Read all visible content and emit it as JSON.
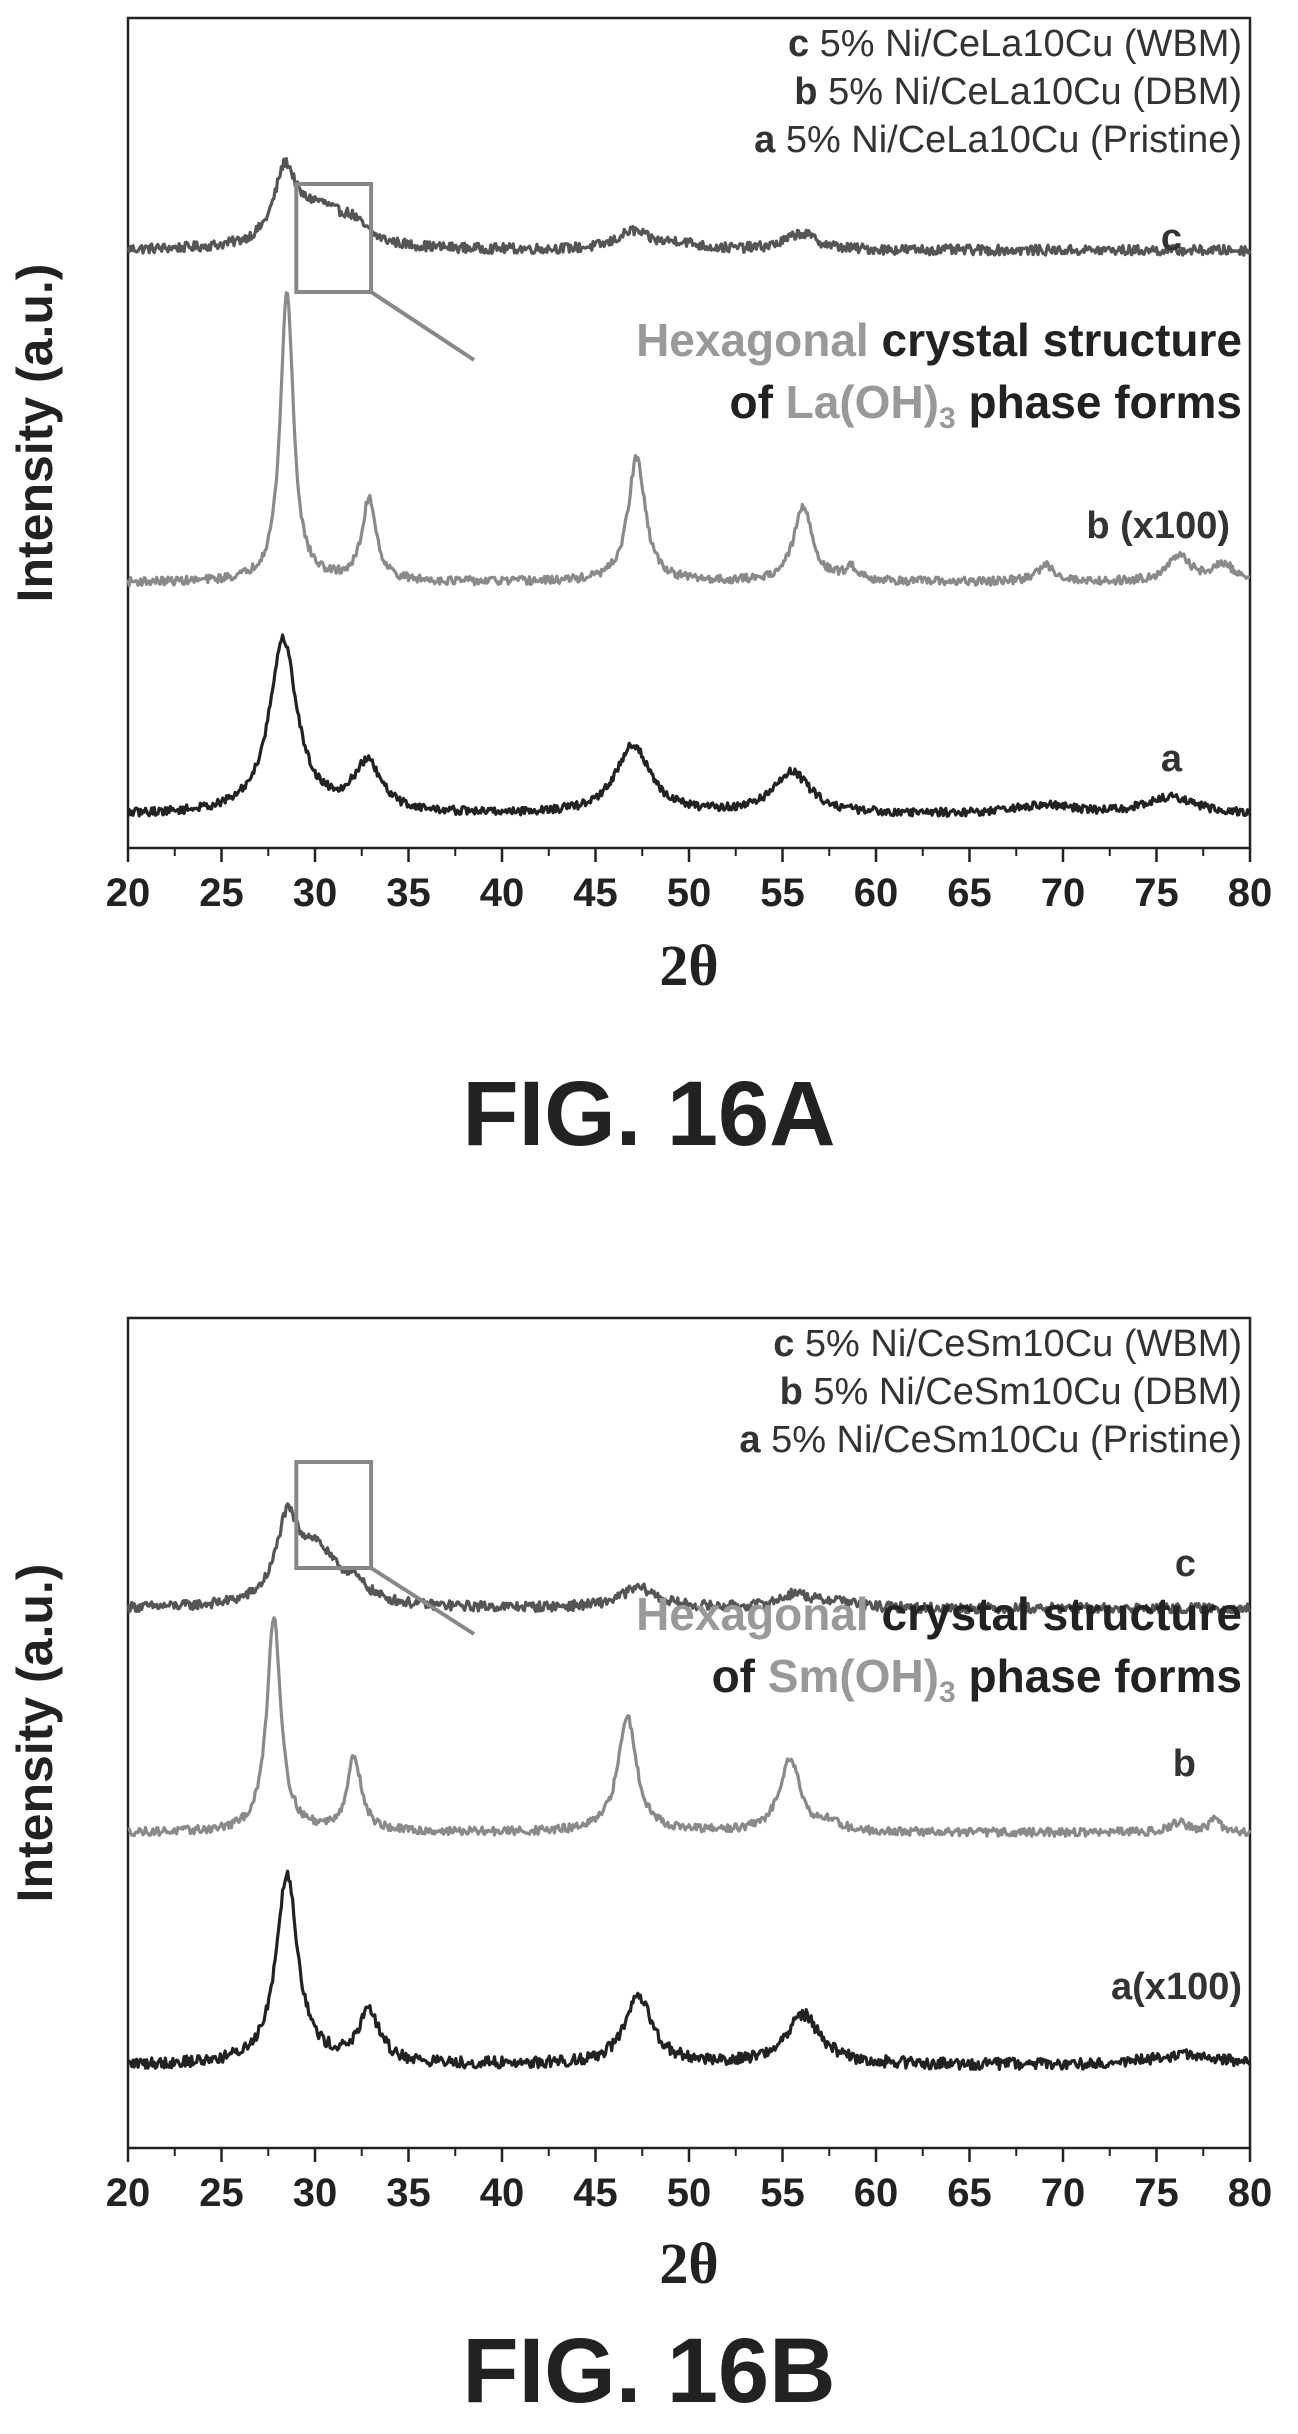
{
  "chart_data": [
    {
      "type": "line",
      "figure_label": "FIG. 16A",
      "xlabel": "2θ",
      "ylabel": "Intensity (a.u.)",
      "xlim": [
        20,
        80
      ],
      "x_ticks": [
        "20",
        "25",
        "30",
        "35",
        "40",
        "45",
        "50",
        "55",
        "60",
        "65",
        "70",
        "75",
        "80"
      ],
      "y_ticks_shown": false,
      "grid": false,
      "legend_position": "top-right",
      "legend": [
        {
          "letter": "c",
          "text": "5% Ni/CeLa10Cu (WBM)"
        },
        {
          "letter": "b",
          "text": "5% Ni/CeLa10Cu (DBM)"
        },
        {
          "letter": "a",
          "text": "5% Ni/CeLa10Cu (Pristine)"
        }
      ],
      "annotation": {
        "highlight": "Hexagonal",
        "rest_line1": " crystal structure",
        "line2_prefix": "of ",
        "line2_species": "La(OH)",
        "line2_subscript": "3",
        "line2_suffix": " phase forms",
        "box_x_range": [
          29,
          33
        ]
      },
      "series": [
        {
          "name": "c",
          "trace_label": "c",
          "color": "#555555",
          "baseline": 0.72,
          "noise": 0.006,
          "peaks": [
            {
              "x": 28.4,
              "height": 0.085,
              "width": 0.7
            },
            {
              "x": 30.2,
              "height": 0.045,
              "width": 1.6
            },
            {
              "x": 32.0,
              "height": 0.02,
              "width": 0.9
            },
            {
              "x": 47.0,
              "height": 0.022,
              "width": 1.0
            },
            {
              "x": 49.5,
              "height": 0.008,
              "width": 1.0
            },
            {
              "x": 56.0,
              "height": 0.02,
              "width": 1.0
            }
          ]
        },
        {
          "name": "b",
          "trace_label": "b (x100)",
          "color": "#8a8a8a",
          "baseline": 0.32,
          "noise": 0.005,
          "peaks": [
            {
              "x": 28.5,
              "height": 0.35,
              "width": 0.42
            },
            {
              "x": 32.9,
              "height": 0.1,
              "width": 0.45
            },
            {
              "x": 47.2,
              "height": 0.15,
              "width": 0.55
            },
            {
              "x": 56.1,
              "height": 0.09,
              "width": 0.6
            },
            {
              "x": 58.7,
              "height": 0.015,
              "width": 0.5
            },
            {
              "x": 69.1,
              "height": 0.02,
              "width": 0.6
            },
            {
              "x": 76.2,
              "height": 0.03,
              "width": 0.8
            },
            {
              "x": 78.6,
              "height": 0.02,
              "width": 0.7
            }
          ]
        },
        {
          "name": "a",
          "trace_label": "a",
          "color": "#222222",
          "baseline": 0.04,
          "noise": 0.005,
          "peaks": [
            {
              "x": 28.3,
              "height": 0.21,
              "width": 0.9
            },
            {
              "x": 32.8,
              "height": 0.058,
              "width": 0.9
            },
            {
              "x": 47.0,
              "height": 0.083,
              "width": 1.1
            },
            {
              "x": 55.5,
              "height": 0.05,
              "width": 1.2
            },
            {
              "x": 69.0,
              "height": 0.01,
              "width": 2.0
            },
            {
              "x": 75.8,
              "height": 0.02,
              "width": 1.6
            }
          ]
        }
      ]
    },
    {
      "type": "line",
      "figure_label": "FIG. 16B",
      "xlabel": "2θ",
      "ylabel": "Intensity (a.u.)",
      "xlim": [
        20,
        80
      ],
      "x_ticks": [
        "20",
        "25",
        "30",
        "35",
        "40",
        "45",
        "50",
        "55",
        "60",
        "65",
        "70",
        "75",
        "80"
      ],
      "y_ticks_shown": false,
      "grid": false,
      "legend_position": "top-right",
      "legend": [
        {
          "letter": "c",
          "text": "5% Ni/CeSm10Cu (WBM)"
        },
        {
          "letter": "b",
          "text": "5% Ni/CeSm10Cu (DBM)"
        },
        {
          "letter": "a",
          "text": "5% Ni/CeSm10Cu (Pristine)"
        }
      ],
      "annotation": {
        "highlight": "Hexagonal",
        "rest_line1": " crystal structure",
        "line2_prefix": "of ",
        "line2_species": "Sm(OH)",
        "line2_subscript": "3",
        "line2_suffix": " phase forms",
        "box_x_range": [
          29,
          33
        ]
      },
      "series": [
        {
          "name": "c",
          "trace_label": "c",
          "color": "#555555",
          "baseline": 0.65,
          "noise": 0.006,
          "peaks": [
            {
              "x": 28.5,
              "height": 0.09,
              "width": 0.7
            },
            {
              "x": 30.0,
              "height": 0.065,
              "width": 1.3
            },
            {
              "x": 32.0,
              "height": 0.02,
              "width": 1.0
            },
            {
              "x": 47.3,
              "height": 0.024,
              "width": 1.2
            },
            {
              "x": 55.7,
              "height": 0.017,
              "width": 1.0
            },
            {
              "x": 58.0,
              "height": 0.008,
              "width": 1.0
            }
          ]
        },
        {
          "name": "b",
          "trace_label": "b",
          "color": "#8a8a8a",
          "baseline": 0.38,
          "noise": 0.005,
          "peaks": [
            {
              "x": 27.8,
              "height": 0.26,
              "width": 0.45
            },
            {
              "x": 32.1,
              "height": 0.09,
              "width": 0.45
            },
            {
              "x": 46.7,
              "height": 0.14,
              "width": 0.6
            },
            {
              "x": 55.4,
              "height": 0.09,
              "width": 0.65
            },
            {
              "x": 57.6,
              "height": 0.01,
              "width": 0.6
            },
            {
              "x": 76.2,
              "height": 0.012,
              "width": 0.6
            },
            {
              "x": 78.1,
              "height": 0.018,
              "width": 0.3
            }
          ]
        },
        {
          "name": "a",
          "trace_label": "a(x100)",
          "color": "#222222",
          "baseline": 0.1,
          "noise": 0.007,
          "peaks": [
            {
              "x": 28.5,
              "height": 0.23,
              "width": 0.7
            },
            {
              "x": 32.9,
              "height": 0.06,
              "width": 0.7
            },
            {
              "x": 47.3,
              "height": 0.08,
              "width": 0.9
            },
            {
              "x": 56.1,
              "height": 0.06,
              "width": 1.1
            },
            {
              "x": 76.5,
              "height": 0.012,
              "width": 2.0
            }
          ]
        }
      ]
    }
  ]
}
